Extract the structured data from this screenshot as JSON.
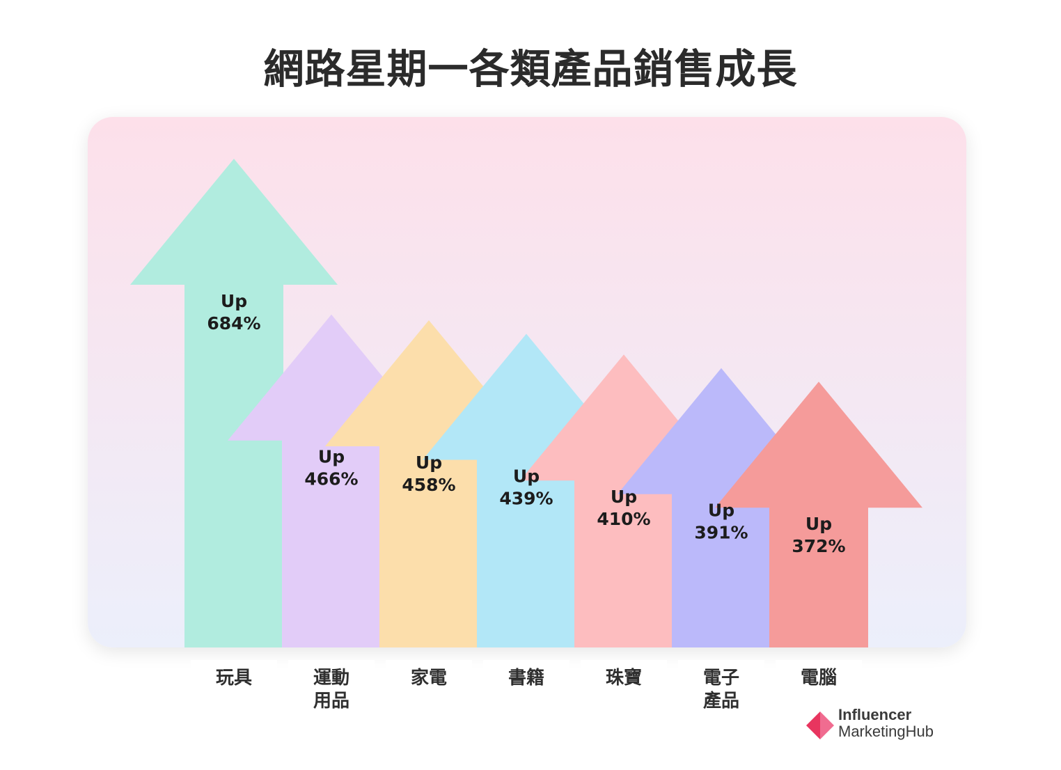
{
  "chart_data": {
    "type": "bar",
    "title": "網路星期一各類產品銷售成長",
    "categories": [
      "玩具",
      "運動\n用品",
      "家電",
      "書籍",
      "珠寶",
      "電子\n產品",
      "電腦"
    ],
    "series": [
      {
        "values": [
          684,
          466,
          458,
          439,
          410,
          391,
          372
        ]
      }
    ],
    "data_labels": [
      "Up\n684%",
      "Up\n466%",
      "Up\n458%",
      "Up\n439%",
      "Up\n410%",
      "Up\n391%",
      "Up\n372%"
    ],
    "colors": [
      "#b1ecdf",
      "#e2ccf8",
      "#fcdeab",
      "#b2e7f7",
      "#fdbdbf",
      "#bbb9fa",
      "#f59b9a"
    ],
    "units": "%",
    "ylim": [
      0,
      684
    ],
    "grid": false,
    "legend": "none",
    "panel_colors": [
      "#fde0ea",
      "#eceffb"
    ]
  },
  "brand": {
    "line1": "Influencer",
    "line2": "MarketingHub",
    "mark_colors": [
      "#e8355f",
      "#f06c90"
    ]
  }
}
